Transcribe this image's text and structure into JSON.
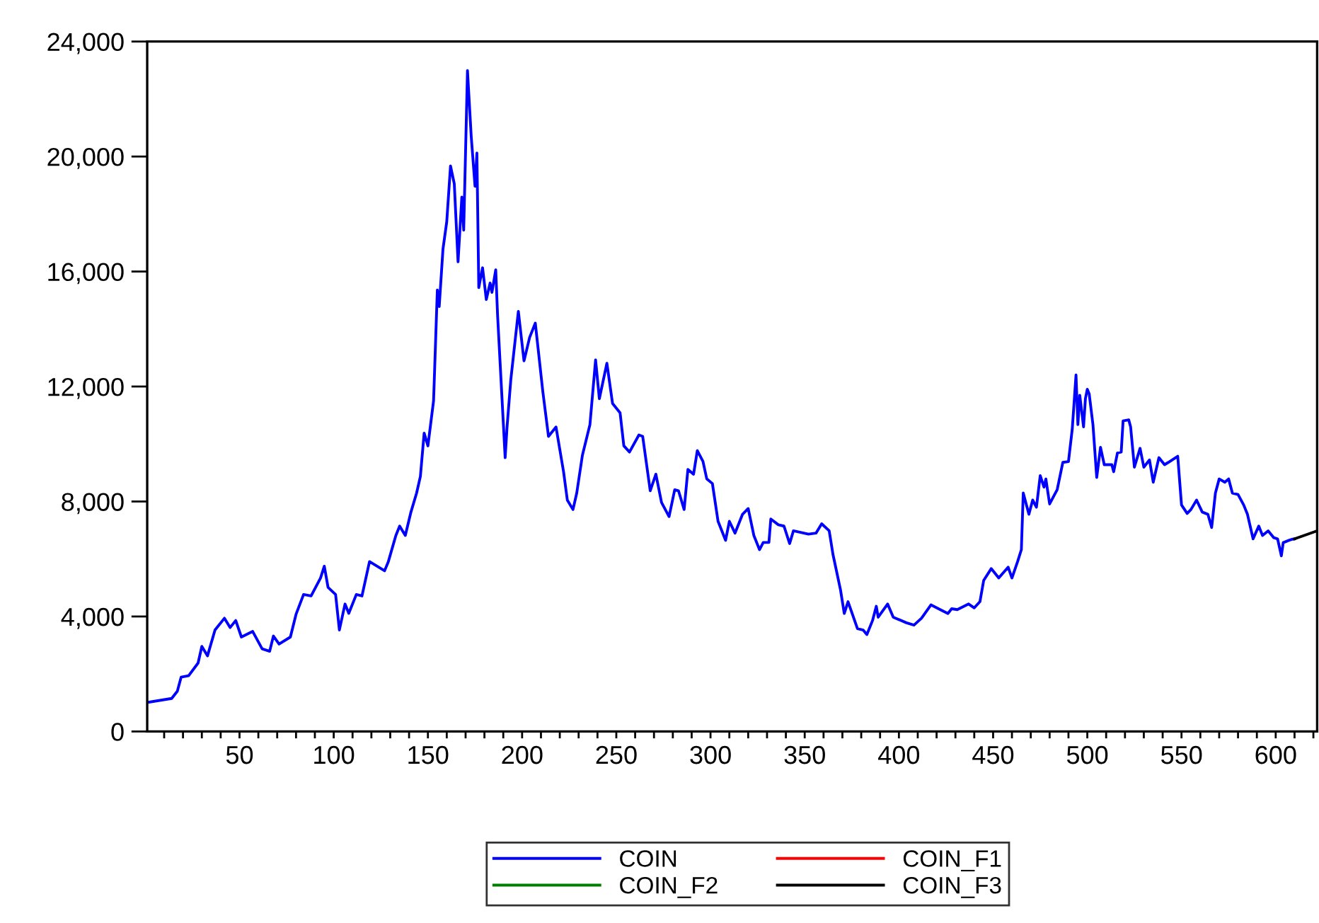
{
  "chart_data": {
    "type": "line",
    "xlim": [
      1,
      622
    ],
    "xticks": [
      {
        "value": 10,
        "label": null
      },
      {
        "value": 20,
        "label": null
      },
      {
        "value": 30,
        "label": null
      },
      {
        "value": 40,
        "label": null
      },
      50,
      {
        "value": 60,
        "label": null
      },
      {
        "value": 70,
        "label": null
      },
      {
        "value": 80,
        "label": null
      },
      {
        "value": 90,
        "label": null
      },
      100,
      {
        "value": 110,
        "label": null
      },
      {
        "value": 120,
        "label": null
      },
      {
        "value": 130,
        "label": null
      },
      {
        "value": 140,
        "label": null
      },
      150,
      {
        "value": 160,
        "label": null
      },
      {
        "value": 170,
        "label": null
      },
      {
        "value": 180,
        "label": null
      },
      {
        "value": 190,
        "label": null
      },
      200,
      {
        "value": 210,
        "label": null
      },
      {
        "value": 220,
        "label": null
      },
      {
        "value": 230,
        "label": null
      },
      {
        "value": 240,
        "label": null
      },
      250,
      {
        "value": 260,
        "label": null
      },
      {
        "value": 270,
        "label": null
      },
      {
        "value": 280,
        "label": null
      },
      {
        "value": 290,
        "label": null
      },
      300,
      {
        "value": 310,
        "label": null
      },
      {
        "value": 320,
        "label": null
      },
      {
        "value": 330,
        "label": null
      },
      {
        "value": 340,
        "label": null
      },
      350,
      {
        "value": 360,
        "label": null
      },
      {
        "value": 370,
        "label": null
      },
      {
        "value": 380,
        "label": null
      },
      {
        "value": 390,
        "label": null
      },
      400,
      {
        "value": 410,
        "label": null
      },
      {
        "value": 420,
        "label": null
      },
      {
        "value": 430,
        "label": null
      },
      {
        "value": 440,
        "label": null
      },
      450,
      {
        "value": 460,
        "label": null
      },
      {
        "value": 470,
        "label": null
      },
      {
        "value": 480,
        "label": null
      },
      {
        "value": 490,
        "label": null
      },
      500,
      {
        "value": 510,
        "label": null
      },
      {
        "value": 520,
        "label": null
      },
      {
        "value": 530,
        "label": null
      },
      {
        "value": 540,
        "label": null
      },
      550,
      {
        "value": 560,
        "label": null
      },
      {
        "value": 570,
        "label": null
      },
      {
        "value": 580,
        "label": null
      },
      {
        "value": 590,
        "label": null
      },
      600,
      {
        "value": 610,
        "label": null
      },
      {
        "value": 620,
        "label": null
      }
    ],
    "ylim": [
      0,
      24000
    ],
    "yticks": [
      0,
      {
        "value": 4000,
        "label": "4,000"
      },
      {
        "value": 8000,
        "label": "8,000"
      },
      {
        "value": 12000,
        "label": "12,000"
      },
      {
        "value": 16000,
        "label": "16,000"
      },
      {
        "value": 20000,
        "label": "20,000"
      },
      {
        "value": 24000,
        "label": "24,000"
      }
    ],
    "grid": false,
    "legend": "bottom",
    "series": [
      {
        "name": "COIN",
        "color": "#0000ff",
        "x": [
          2,
          14,
          17,
          19,
          23,
          28,
          30,
          33,
          37,
          42,
          45,
          48,
          51,
          57,
          62,
          66,
          68,
          71,
          77,
          80,
          84,
          88,
          93,
          95,
          97,
          101,
          103,
          106,
          108,
          112,
          115,
          119,
          123,
          127,
          129,
          133,
          135,
          138,
          141,
          144,
          146,
          148,
          150,
          153,
          155,
          156,
          158,
          160,
          162,
          164,
          166,
          168,
          169,
          171,
          173,
          175,
          176,
          177,
          179,
          181,
          183,
          184,
          186,
          187,
          191,
          192,
          194,
          198,
          201,
          204,
          207,
          211,
          214,
          218,
          222,
          224,
          227,
          229,
          232,
          236,
          239,
          241,
          245,
          248,
          252,
          254,
          257,
          262,
          264,
          268,
          271,
          274,
          278,
          281,
          283,
          286,
          288,
          291,
          293,
          296,
          298,
          301,
          304,
          308,
          310,
          313,
          317,
          320,
          323,
          326,
          328,
          331,
          332,
          336,
          339,
          342,
          344,
          352,
          356,
          359,
          363,
          365,
          369,
          371,
          373,
          378,
          381,
          383,
          386,
          388,
          389,
          394,
          397,
          404,
          408,
          412,
          417,
          421,
          426,
          428,
          431,
          437,
          440,
          443,
          445,
          449,
          453,
          458,
          460,
          463,
          465,
          466,
          469,
          471,
          473,
          475,
          477,
          478,
          480,
          484,
          487,
          490,
          492,
          494,
          495,
          496,
          498,
          499,
          500,
          501,
          503,
          505,
          507,
          509,
          513,
          514,
          516,
          518,
          519,
          522,
          523,
          525,
          528,
          530,
          533,
          535,
          538,
          541,
          543,
          548,
          550,
          553,
          555,
          558,
          561,
          564,
          566,
          568,
          570,
          573,
          575,
          577,
          580,
          583,
          585,
          588,
          591,
          593,
          596,
          599,
          601,
          603,
          604,
          607,
          609,
          610
        ],
        "values": [
          1020,
          1150,
          1400,
          1890,
          1940,
          2380,
          2960,
          2630,
          3530,
          3940,
          3615,
          3860,
          3285,
          3480,
          2875,
          2790,
          3320,
          3040,
          3285,
          4075,
          4765,
          4715,
          5340,
          5750,
          5010,
          4765,
          3530,
          4435,
          4110,
          4765,
          4715,
          5910,
          5750,
          5590,
          5910,
          6820,
          7145,
          6820,
          7635,
          8295,
          8870,
          10380,
          9935,
          11500,
          15355,
          14780,
          16785,
          17735,
          19675,
          19050,
          16340,
          18590,
          17440,
          22990,
          20690,
          18965,
          20120,
          15440,
          16130,
          15025,
          15600,
          15275,
          16060,
          14450,
          9525,
          10590,
          12235,
          14615,
          12890,
          13710,
          14205,
          11820,
          10265,
          10590,
          9035,
          8050,
          7720,
          8295,
          9605,
          10675,
          12925,
          11575,
          12810,
          11410,
          11085,
          9935,
          9720,
          10315,
          10265,
          8375,
          8950,
          7965,
          7475,
          8410,
          8375,
          7720,
          9115,
          8950,
          9770,
          9395,
          8790,
          8625,
          7310,
          6650,
          7310,
          6900,
          7555,
          7755,
          6820,
          6325,
          6575,
          6575,
          7390,
          7190,
          7145,
          6535,
          6980,
          6865,
          6900,
          7225,
          6980,
          6160,
          4925,
          4105,
          4515,
          3580,
          3530,
          3370,
          3860,
          4355,
          3975,
          4435,
          3975,
          3780,
          3700,
          3940,
          4405,
          4270,
          4105,
          4270,
          4240,
          4435,
          4300,
          4515,
          5255,
          5665,
          5340,
          5715,
          5340,
          5910,
          6325,
          8295,
          7555,
          8050,
          7800,
          8900,
          8500,
          8785,
          7915,
          8410,
          9360,
          9390,
          10510,
          12400,
          10675,
          11695,
          10595,
          11580,
          11905,
          11745,
          10675,
          8835,
          9885,
          9280,
          9280,
          9035,
          9690,
          9720,
          10805,
          10840,
          10590,
          9195,
          9850,
          9195,
          9445,
          8670,
          9525,
          9280,
          9360,
          9575,
          7880,
          7585,
          7720,
          8050,
          7635,
          7555,
          7095,
          8295,
          8785,
          8670,
          8785,
          8295,
          8245,
          7880,
          7555,
          6700,
          7145,
          6820,
          6980,
          6740,
          6700,
          6110,
          6570,
          6650,
          6690,
          6700
        ]
      },
      {
        "name": "COIN_F1",
        "color": "#ff0000"
      },
      {
        "name": "COIN_F2",
        "color": "#008000"
      },
      {
        "name": "COIN_F3",
        "color": "#000000",
        "x": [
          610,
          622
        ],
        "values": [
          6700,
          6980
        ]
      }
    ]
  }
}
